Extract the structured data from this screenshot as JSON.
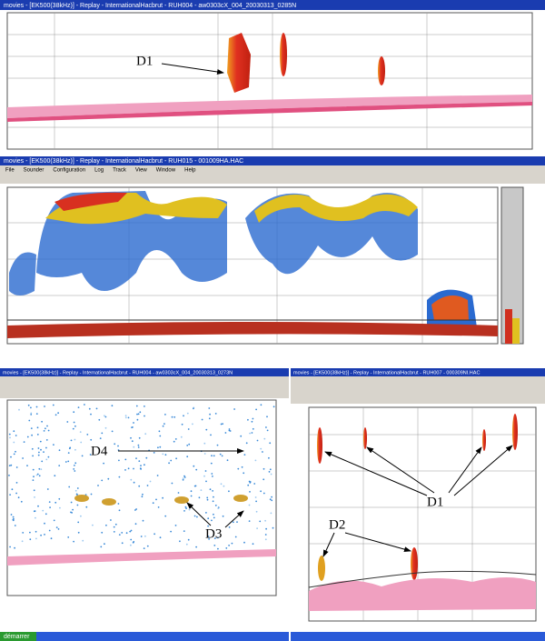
{
  "panels": [
    {
      "title": "movies - [EK500(38kHz)] - Replay - InternationalHacbrut - RUH004 - aw0303cX_004_20030313_0285N",
      "annotations": [
        {
          "label": "D1"
        }
      ]
    },
    {
      "title": "movies - [EK500(38kHz)] - Replay - InternationalHacbrut - RUH015 - 001009HA.HAC",
      "menu": [
        "File",
        "Sounder",
        "Configuration",
        "Log",
        "Track",
        "View",
        "Window",
        "Help"
      ]
    },
    {
      "title": "movies - [EK500(38kHz)] - Replay - InternationalHacbrut - RUH004 - aw0303cX_004_20030313_0273N",
      "annotations": [
        {
          "label": "D4"
        },
        {
          "label": "D3"
        }
      ],
      "taskbar": "démarrer"
    },
    {
      "title": "movies - [EK500(38kHz)] - Replay - InternationalHacbrut - RUH007 - 000309NI.HAC",
      "annotations": [
        {
          "label": "D1"
        },
        {
          "label": "D2"
        }
      ]
    }
  ]
}
